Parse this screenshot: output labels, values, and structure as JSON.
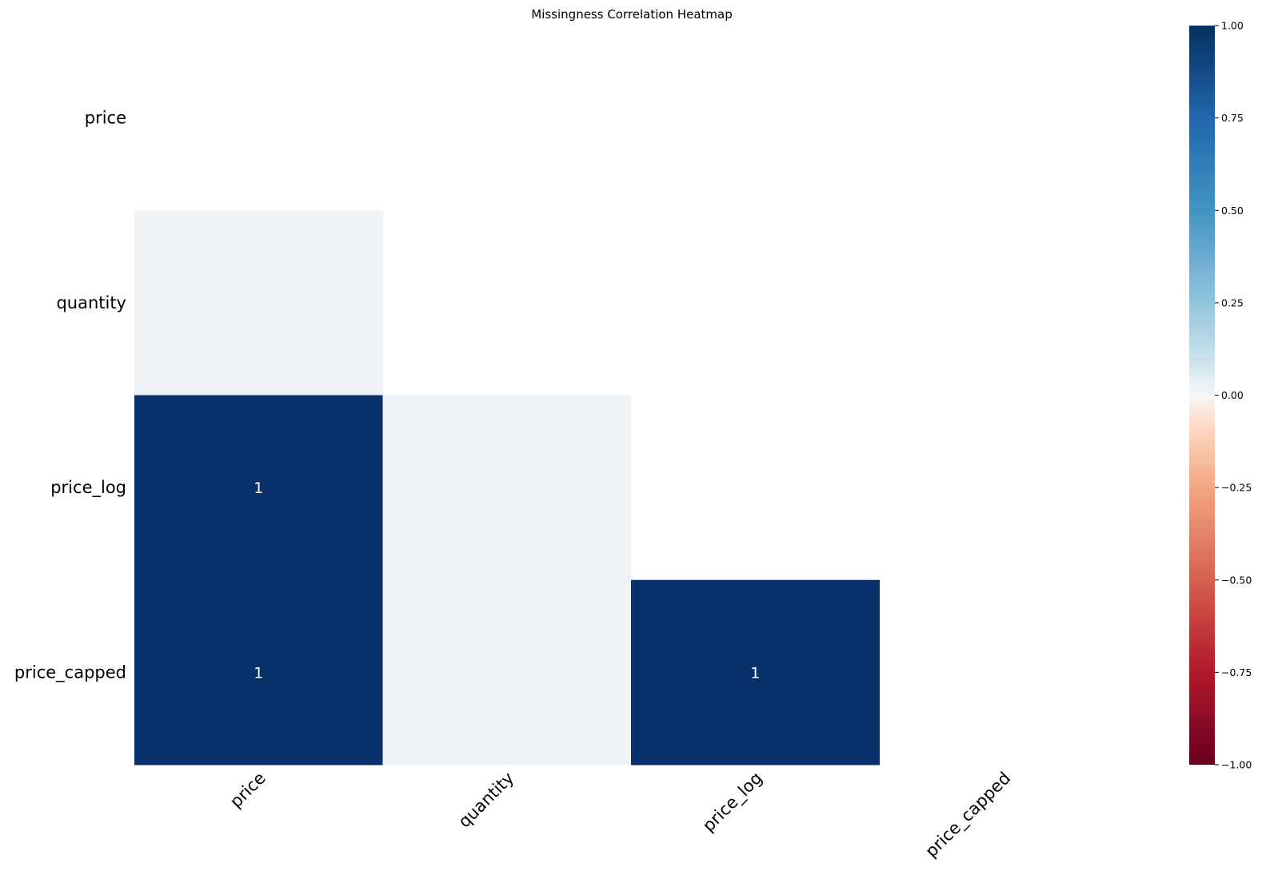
{
  "chart_data": {
    "type": "heatmap",
    "title": "Missingness Correlation Heatmap",
    "rows": [
      "price",
      "quantity",
      "price_log",
      "price_capped"
    ],
    "columns": [
      "price",
      "quantity",
      "price_log",
      "price_capped"
    ],
    "mask": "upper-triangle-including-diagonal",
    "cells": [
      {
        "row": "quantity",
        "col": "price",
        "value": 0,
        "label": ""
      },
      {
        "row": "price_log",
        "col": "price",
        "value": 1,
        "label": "1"
      },
      {
        "row": "price_log",
        "col": "quantity",
        "value": 0,
        "label": ""
      },
      {
        "row": "price_capped",
        "col": "price",
        "value": 1,
        "label": "1"
      },
      {
        "row": "price_capped",
        "col": "quantity",
        "value": 0,
        "label": ""
      },
      {
        "row": "price_capped",
        "col": "price_log",
        "value": 1,
        "label": "1"
      }
    ],
    "colorbar": {
      "colormap": "RdBu",
      "vmin": -1,
      "vmax": 1,
      "ticks": [
        1.0,
        0.75,
        0.5,
        0.25,
        0.0,
        -0.25,
        -0.5,
        -0.75,
        -1.0
      ],
      "tick_labels": [
        "1.00",
        "0.75",
        "0.50",
        "0.25",
        "0.00",
        "−0.25",
        "−0.50",
        "−0.75",
        "−1.00"
      ],
      "placement": "right"
    },
    "grid": false,
    "colors": {
      "strong_positive": "#08306b",
      "neutral": "#eff3f6",
      "background": "#ffffff"
    }
  }
}
